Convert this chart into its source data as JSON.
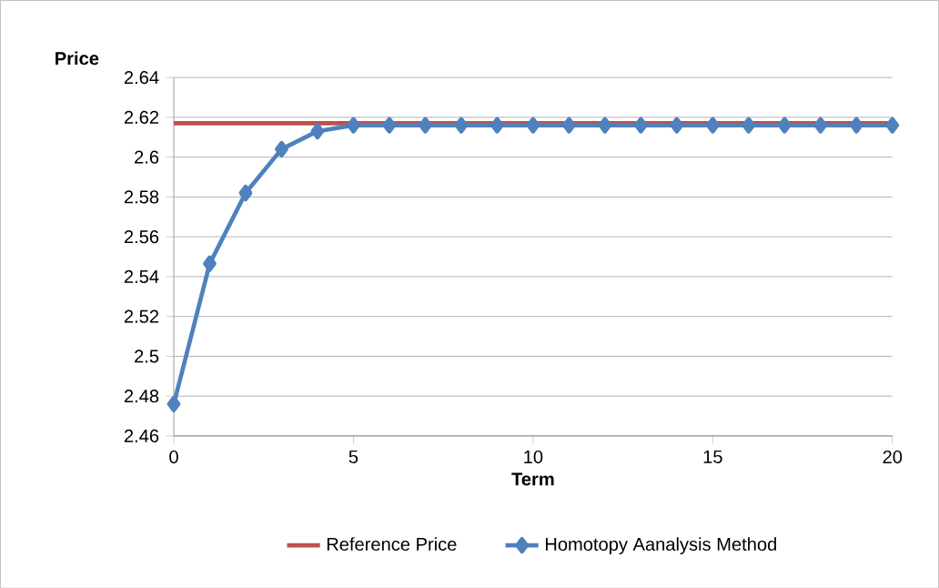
{
  "chart_data": {
    "type": "line",
    "ylabel": "Price",
    "xlabel": "Term",
    "xlim": [
      0,
      20
    ],
    "xticks": [
      0,
      5,
      10,
      15,
      20
    ],
    "ylim": [
      2.46,
      2.64
    ],
    "yticks": [
      2.46,
      2.48,
      2.5,
      2.52,
      2.54,
      2.56,
      2.58,
      2.6,
      2.62,
      2.64
    ],
    "grid": "y",
    "legend": "bottom",
    "marker": "diamond",
    "x": [
      0,
      1,
      2,
      3,
      4,
      5,
      6,
      7,
      8,
      9,
      10,
      11,
      12,
      13,
      14,
      15,
      16,
      17,
      18,
      19,
      20
    ],
    "series": [
      {
        "name": "Reference Price",
        "color": "#c0504d",
        "marker": "none",
        "x": [
          0,
          20
        ],
        "values": [
          2.617,
          2.617
        ]
      },
      {
        "name": "Homotopy Aanalysis Method",
        "color": "#4f81bd",
        "values": [
          2.476,
          2.5465,
          2.582,
          2.604,
          2.613,
          2.616,
          2.616,
          2.616,
          2.616,
          2.616,
          2.616,
          2.616,
          2.616,
          2.616,
          2.616,
          2.616,
          2.616,
          2.616,
          2.616,
          2.616,
          2.616
        ]
      }
    ]
  }
}
